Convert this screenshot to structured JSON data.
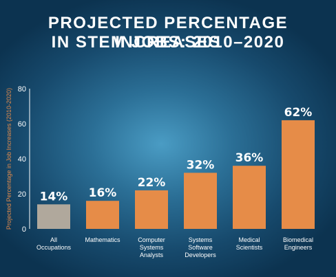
{
  "title_lines": [
    "PROJECTED PERCENTAGE INCREASES",
    "IN STEM JOBS: 2010–2020"
  ],
  "chart_data": {
    "type": "bar",
    "title": "PROJECTED PERCENTAGE INCREASES IN STEM JOBS: 2010–2020",
    "ylabel": "Projected Percentage in Job Increases (2010-2020)",
    "xlabel": "",
    "ylim": [
      0,
      80
    ],
    "yticks": [
      0,
      20,
      40,
      60,
      80
    ],
    "categories": [
      [
        "All",
        "Occupations"
      ],
      [
        "Mathematics"
      ],
      [
        "Computer",
        "Systems",
        "Analysts"
      ],
      [
        "Systems",
        "Software",
        "Developers"
      ],
      [
        "Medical",
        "Scientists"
      ],
      [
        "Biomedical",
        "Engineers"
      ]
    ],
    "values": [
      14,
      16,
      22,
      32,
      36,
      62
    ],
    "data_labels": [
      "14%",
      "16%",
      "22%",
      "32%",
      "36%",
      "62%"
    ],
    "bar_colors": [
      "#b0a89c",
      "#e68c48",
      "#e68c48",
      "#e68c48",
      "#e68c48",
      "#e68c48"
    ],
    "grid": false
  }
}
